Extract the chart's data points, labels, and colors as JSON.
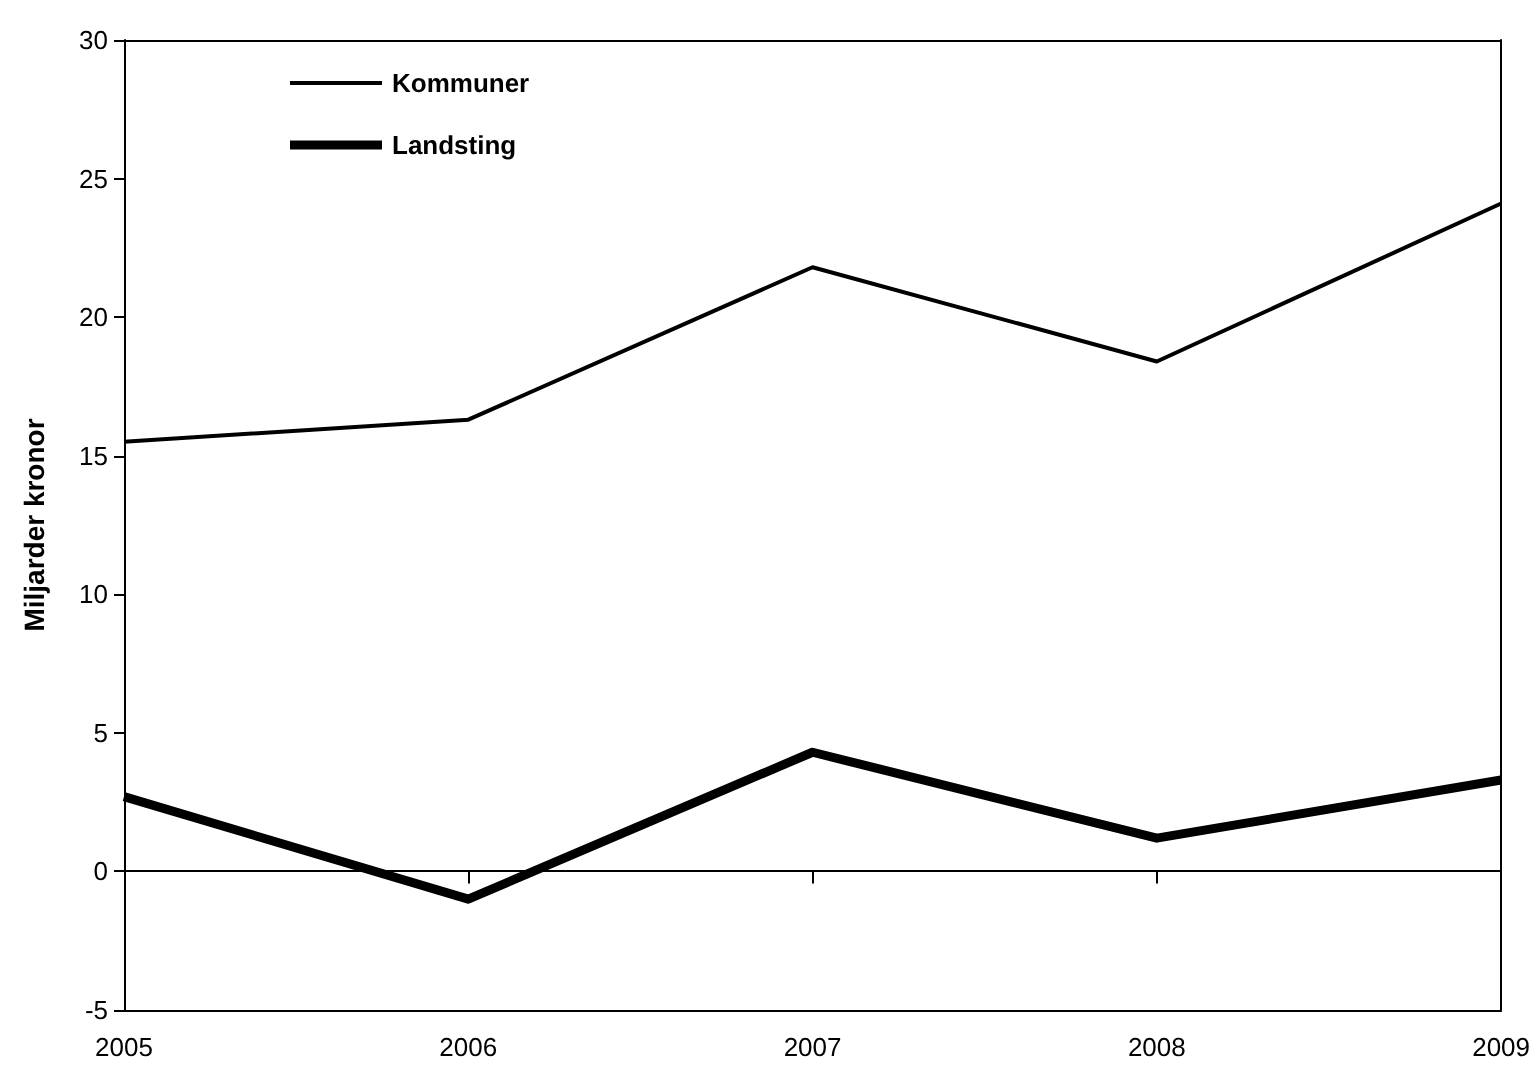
{
  "chart_data": {
    "type": "line",
    "ylabel": "Miljarder kronor",
    "categories": [
      "2005",
      "2006",
      "2007",
      "2008",
      "2009"
    ],
    "series": [
      {
        "name": "Kommuner",
        "color": "#000000",
        "values": [
          15.5,
          16.3,
          21.8,
          18.4,
          24.1
        ]
      },
      {
        "name": "Landsting",
        "color": "#000000",
        "values": [
          2.7,
          -1.0,
          4.3,
          1.2,
          3.3
        ]
      }
    ],
    "ylim": [
      -5,
      30
    ],
    "yticks": [
      -5,
      0,
      5,
      10,
      15,
      20,
      25,
      30
    ],
    "legend": "top left",
    "marker": "none"
  }
}
